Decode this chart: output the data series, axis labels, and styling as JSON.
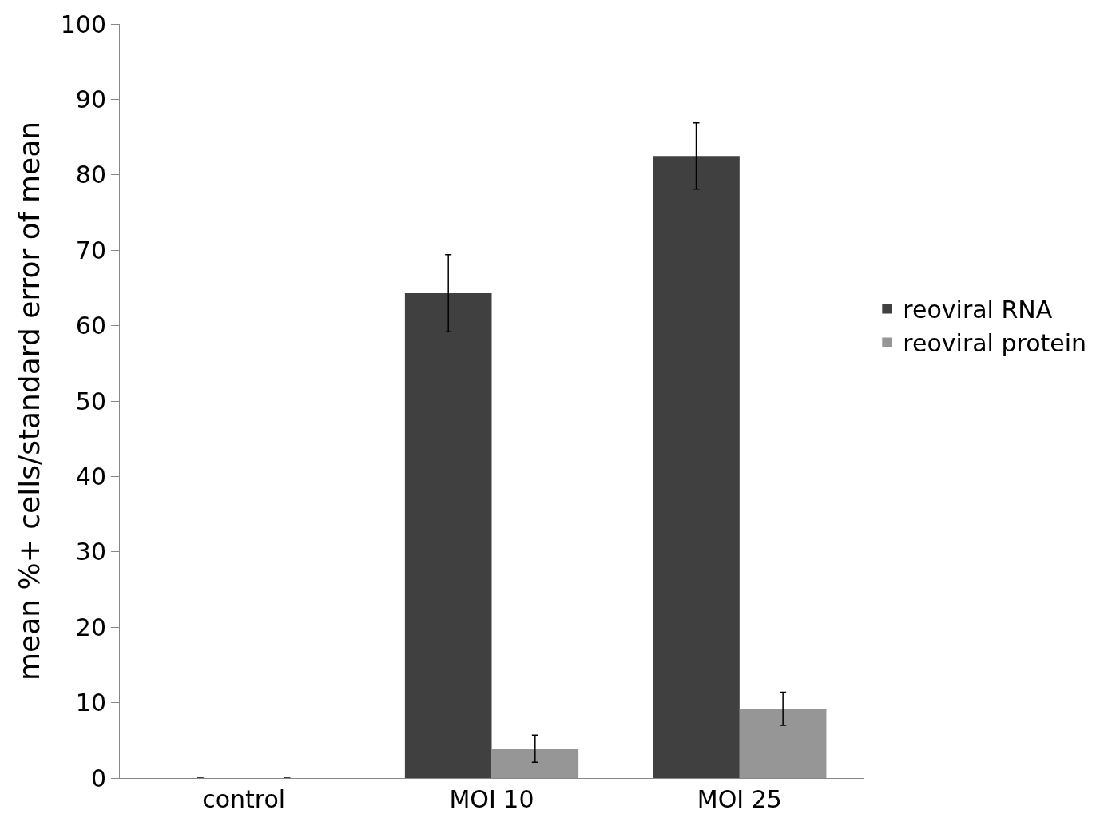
{
  "chart_data": {
    "type": "bar",
    "ylabel": "mean %+ cells/standard error of mean",
    "categories": [
      "control",
      "MOI 10",
      "MOI 25"
    ],
    "series": [
      {
        "name": "reoviral RNA",
        "color": "#404040",
        "values": [
          0,
          64.3,
          82.5
        ],
        "errors": [
          0,
          5.1,
          4.4
        ]
      },
      {
        "name": "reoviral protein",
        "color": "#969696",
        "values": [
          0,
          3.9,
          9.2
        ],
        "errors": [
          0,
          1.8,
          2.2
        ]
      }
    ],
    "ylim": [
      0,
      100
    ],
    "yticks": [
      0,
      10,
      20,
      30,
      40,
      50,
      60,
      70,
      80,
      90,
      100
    ],
    "legend": "right"
  }
}
